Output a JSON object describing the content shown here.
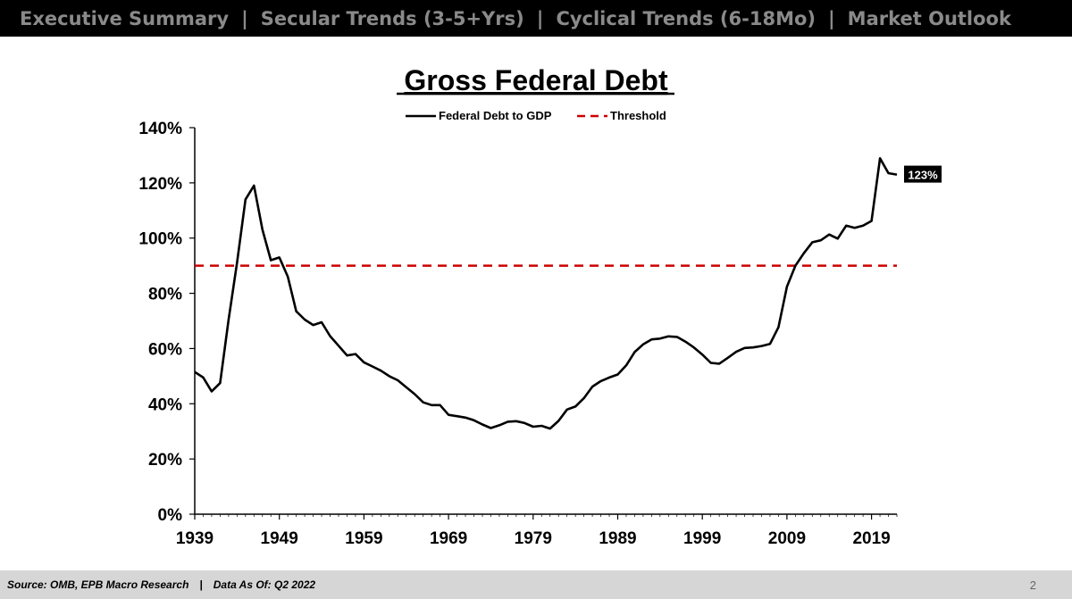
{
  "nav": {
    "tabs": [
      {
        "label": "Executive Summary"
      },
      {
        "label": "Secular Trends (3-5+Yrs)"
      },
      {
        "label": "Cyclical Trends (6-18Mo)"
      },
      {
        "label": "Market Outlook"
      }
    ],
    "separator": "|"
  },
  "footer": {
    "source": "Source: OMB, EPB Macro Research",
    "separator": "|",
    "data_as_of": "Data As Of: Q2 2022",
    "page_number": "2"
  },
  "chart_data": {
    "type": "line",
    "title": "Gross Federal Debt",
    "xlabel": "",
    "ylabel": "",
    "xlim": [
      1939,
      2022
    ],
    "ylim": [
      0,
      140
    ],
    "x_ticks": [
      1939,
      1949,
      1959,
      1969,
      1979,
      1989,
      1999,
      2009,
      2019
    ],
    "y_ticks": [
      0,
      20,
      40,
      60,
      80,
      100,
      120,
      140
    ],
    "y_tick_format": "percent",
    "grid": false,
    "legend_placement": "top-center",
    "series": [
      {
        "name": "Federal Debt to GDP",
        "color": "#000000",
        "style": "solid",
        "x": [
          1939,
          1940,
          1941,
          1942,
          1943,
          1944,
          1945,
          1946,
          1947,
          1948,
          1949,
          1950,
          1951,
          1952,
          1953,
          1954,
          1955,
          1956,
          1957,
          1958,
          1959,
          1960,
          1961,
          1962,
          1963,
          1964,
          1965,
          1966,
          1967,
          1968,
          1969,
          1970,
          1971,
          1972,
          1973,
          1974,
          1975,
          1976,
          1977,
          1978,
          1979,
          1980,
          1981,
          1982,
          1983,
          1984,
          1985,
          1986,
          1987,
          1988,
          1989,
          1990,
          1991,
          1992,
          1993,
          1994,
          1995,
          1996,
          1997,
          1998,
          1999,
          2000,
          2001,
          2002,
          2003,
          2004,
          2005,
          2006,
          2007,
          2008,
          2009,
          2010,
          2011,
          2012,
          2013,
          2014,
          2015,
          2016,
          2017,
          2018,
          2019,
          2020,
          2021,
          2022
        ],
        "values": [
          51.5,
          49.5,
          44.5,
          47.5,
          70.5,
          91,
          114,
          119,
          103,
          92,
          93,
          86,
          73.5,
          70.5,
          68.5,
          69.5,
          64.5,
          61,
          57.5,
          58,
          55,
          53.5,
          52,
          50,
          48.5,
          46,
          43.5,
          40.5,
          39.5,
          39.5,
          36,
          35.5,
          35,
          34,
          32.5,
          31.2,
          32.2,
          33.5,
          33.7,
          33,
          31.7,
          32,
          31,
          33.8,
          37.9,
          39,
          42,
          46.2,
          48.2,
          49.5,
          50.6,
          53.9,
          58.7,
          61.5,
          63.3,
          63.6,
          64.4,
          64.2,
          62.5,
          60.4,
          57.8,
          54.8,
          54.5,
          56.6,
          58.8,
          60.2,
          60.4,
          60.9,
          61.7,
          67.7,
          82.4,
          90,
          94.5,
          98.5,
          99.2,
          101.3,
          99.8,
          104.5,
          103.7,
          104.5,
          106.2,
          128.9,
          123.5,
          123
        ]
      },
      {
        "name": "Threshold",
        "color": "#cc0000",
        "style": "dashed",
        "x": [
          1939,
          2022
        ],
        "values": [
          90,
          90
        ]
      }
    ],
    "annotations": [
      {
        "text": "123%",
        "x": 2022,
        "y": 123,
        "style": "black-box-white-text"
      }
    ]
  }
}
